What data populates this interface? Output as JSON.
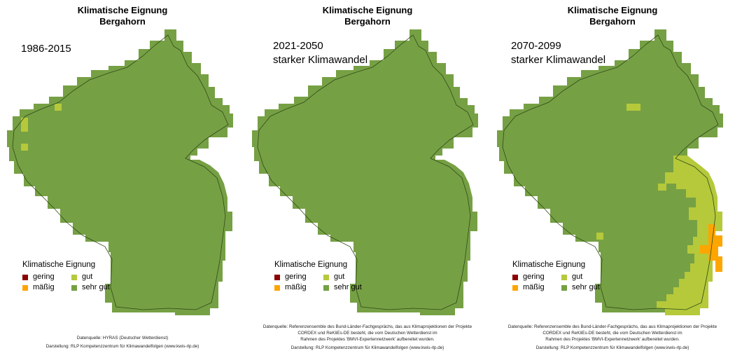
{
  "colors": {
    "gering": "#8b0000",
    "maessig": "#ffa500",
    "gut": "#b6c93a",
    "sehr_gut": "#76a044",
    "border": "#2e4a18"
  },
  "legend": {
    "title": "Klimatische Eignung",
    "gering": "gering",
    "maessig": "mäßig",
    "gut": "gut",
    "sehr_gut": "sehr gut"
  },
  "panels": [
    {
      "title_line1": "Klimatische Eignung",
      "title_line2": "Bergahorn",
      "period": "1986-2015",
      "scenario": "",
      "source_line1": "Datenquelle: HYRAS (Deutscher Wetterdienst)",
      "source_line2": "",
      "source_line3": "",
      "credit": "Darstellung: RLP Kompetenzzentrum für Klimawandelfolgen (www.kwis-rlp.de)"
    },
    {
      "title_line1": "Klimatische Eignung",
      "title_line2": "Bergahorn",
      "period": "2021-2050",
      "scenario": "starker Klimawandel",
      "source_line1": "Datenquelle: Referenzensemble des Bund-Länder-Fachgesprächs, das aus Klimaprojektionen der Projekte",
      "source_line2": "CORDEX und ReKliEs-DE besteht, die vom Deutschen Wetterdienst im",
      "source_line3": "Rahmen des Projektes 'BMVI-Expertennetzwerk' aufbereitet wurden.",
      "credit": "Darstellung: RLP Kompetenzzentrum für Klimawandelfolgen (www.kwis-rlp.de)"
    },
    {
      "title_line1": "Klimatische Eignung",
      "title_line2": "Bergahorn",
      "period": "2070-2099",
      "scenario": "starker Klimawandel",
      "source_line1": "Datenquelle: Referenzensemble des Bund-Länder-Fachgesprächs, das aus Klimaprojektionen der Projekte",
      "source_line2": "CORDEX und ReKliEs-DE besteht, die vom Deutschen Wetterdienst im",
      "source_line3": "Rahmen des Projektes 'BMVI-Expertennetzwerk' aufbereitet wurden.",
      "credit": "Darstellung: RLP Kompetenzzentrum für Klimawandelfolgen (www.kwis-rlp.de)"
    }
  ]
}
